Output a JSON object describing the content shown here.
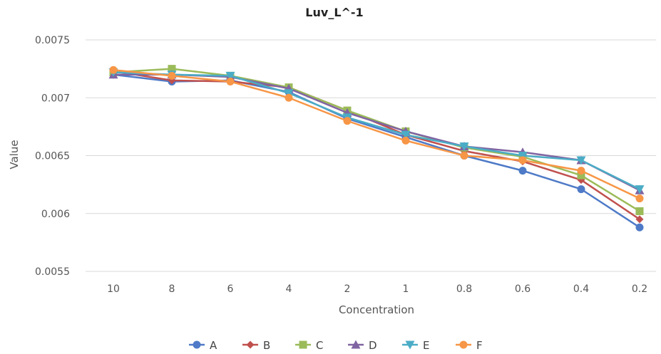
{
  "chart_data": {
    "type": "line",
    "title": "Luv_L^-1",
    "xlabel": "Concentration",
    "ylabel": "Value",
    "categories": [
      "10",
      "8",
      "6",
      "4",
      "2",
      "1",
      "0.8",
      "0.6",
      "0.4",
      "0.2"
    ],
    "ylim": [
      0.0055,
      0.0075
    ],
    "yticks": [
      0.0055,
      0.006,
      0.0065,
      0.007,
      0.0075
    ],
    "ytick_labels": [
      "0.0055",
      "0.006",
      "0.0065",
      "0.007",
      "0.0075"
    ],
    "grid": true,
    "legend_position": "bottom",
    "series": [
      {
        "name": "A",
        "color": "#4e7ac7",
        "marker": "circle",
        "values": [
          0.0072,
          0.00714,
          0.00715,
          0.00705,
          0.00682,
          0.00666,
          0.0065,
          0.00637,
          0.00621,
          0.00588
        ]
      },
      {
        "name": "B",
        "color": "#c0504d",
        "marker": "diamond",
        "values": [
          0.00723,
          0.00715,
          0.00714,
          0.00709,
          0.00689,
          0.00668,
          0.00654,
          0.00645,
          0.00629,
          0.00595
        ]
      },
      {
        "name": "C",
        "color": "#9bbb59",
        "marker": "square",
        "values": [
          0.00722,
          0.00725,
          0.00719,
          0.00709,
          0.00689,
          0.00671,
          0.00657,
          0.00649,
          0.00633,
          0.00602
        ]
      },
      {
        "name": "D",
        "color": "#8064a2",
        "marker": "triangle-up",
        "values": [
          0.0072,
          0.0072,
          0.00718,
          0.00708,
          0.00687,
          0.00671,
          0.00658,
          0.00653,
          0.00646,
          0.0062
        ]
      },
      {
        "name": "E",
        "color": "#4bacc6",
        "marker": "triangle-down",
        "values": [
          0.00722,
          0.0072,
          0.00719,
          0.00704,
          0.00683,
          0.00668,
          0.00658,
          0.0065,
          0.00646,
          0.00621
        ]
      },
      {
        "name": "F",
        "color": "#f79646",
        "marker": "circle",
        "values": [
          0.00724,
          0.00719,
          0.00714,
          0.007,
          0.0068,
          0.00663,
          0.0065,
          0.00646,
          0.00637,
          0.00613
        ]
      }
    ]
  }
}
